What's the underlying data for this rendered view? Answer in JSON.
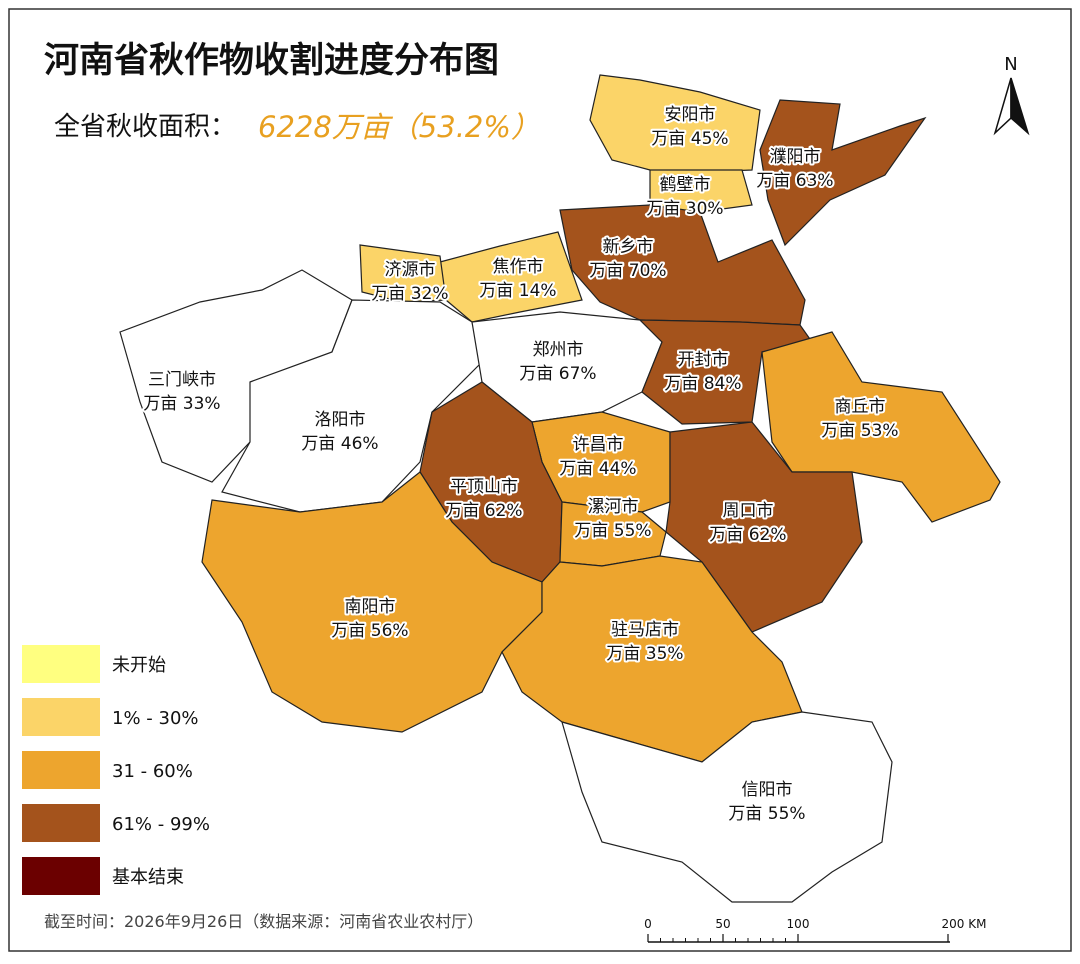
{
  "header": {
    "title": "河南省秋作物收割进度分布图",
    "subtitle_label": "全省秋收面积：",
    "subtitle_value": "6228万亩（53.2%）"
  },
  "cities": [
    {
      "name": "安阳市",
      "label": "万亩 45%"
    },
    {
      "name": "濮阳市",
      "label": "万亩 63%"
    },
    {
      "name": "鹤壁市",
      "label": "万亩 30%"
    },
    {
      "name": "新乡市",
      "label": "万亩 70%"
    },
    {
      "name": "焦作市",
      "label": "万亩 14%"
    },
    {
      "name": "济源市",
      "label": "万亩 32%"
    },
    {
      "name": "三门峡市",
      "label": "万亩 33%"
    },
    {
      "name": "洛阳市",
      "label": "万亩 46%"
    },
    {
      "name": "郑州市",
      "label": "万亩 67%"
    },
    {
      "name": "开封市",
      "label": "万亩 84%"
    },
    {
      "name": "商丘市",
      "label": "万亩 53%"
    },
    {
      "name": "许昌市",
      "label": "万亩 44%"
    },
    {
      "name": "平顶山市",
      "label": "万亩 62%"
    },
    {
      "name": "漯河市",
      "label": "万亩 55%"
    },
    {
      "name": "周口市",
      "label": "万亩 62%"
    },
    {
      "name": "南阳市",
      "label": "万亩 56%"
    },
    {
      "name": "驻马店市",
      "label": "万亩 35%"
    },
    {
      "name": "信阳市",
      "label": "万亩 55%"
    }
  ],
  "legend": [
    "未开始",
    "1% - 30%",
    "31 - 60%",
    "61% - 99%",
    "基本结束"
  ],
  "footer": "截至时间：2026年9月26日（数据来源：河南省农业农村厅）",
  "scale": [
    "0",
    "50",
    "100",
    "200 KM"
  ],
  "north": "N"
}
